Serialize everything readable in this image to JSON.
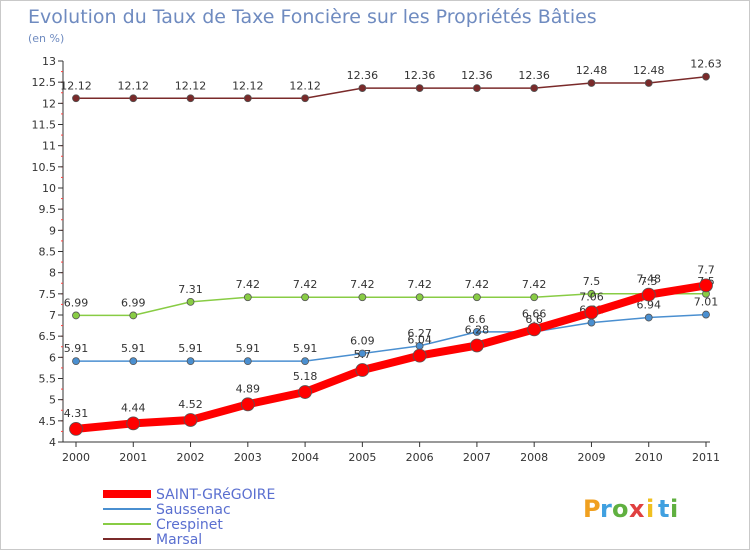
{
  "chart_data": {
    "type": "line",
    "title": "Evolution du Taux de Taxe Foncière sur les Propriétés Bâties",
    "subtitle": "(en %)",
    "xlabel": "",
    "ylabel": "",
    "categories": [
      "2000",
      "2001",
      "2002",
      "2003",
      "2004",
      "2005",
      "2006",
      "2007",
      "2008",
      "2009",
      "2010",
      "2011"
    ],
    "ylim": [
      4,
      13
    ],
    "yticks": [
      "4",
      "4.5",
      "5",
      "5.5",
      "6",
      "6.5",
      "7",
      "7.5",
      "8",
      "8.5",
      "9",
      "9.5",
      "10",
      "10.5",
      "11",
      "11.5",
      "12",
      "12.5",
      "13"
    ],
    "grid": false,
    "legend_position": "bottom-left",
    "series": [
      {
        "name": "SAINT-GRéGOIRE",
        "color": "#ff0000",
        "width": 8,
        "marker": 6.5,
        "values": [
          4.31,
          4.44,
          4.52,
          4.89,
          5.18,
          5.7,
          6.04,
          6.28,
          6.66,
          7.06,
          7.48,
          7.7
        ],
        "labels": [
          "4.31",
          "4.44",
          "4.52",
          "4.89",
          "5.18",
          "5.7",
          "6.04",
          "6.28",
          "6.66",
          "7.06",
          "7.48",
          "7.7"
        ]
      },
      {
        "name": "Saussenac",
        "color": "#4a8fd0",
        "width": 1.5,
        "marker": 3.5,
        "values": [
          5.91,
          5.91,
          5.91,
          5.91,
          5.91,
          6.09,
          6.27,
          6.6,
          6.6,
          6.82,
          6.94,
          7.01
        ],
        "labels": [
          "5.91",
          "5.91",
          "5.91",
          "5.91",
          "5.91",
          "6.09",
          "6.27",
          "6.6",
          "6.6",
          "6.82",
          "6.94",
          "7.01"
        ]
      },
      {
        "name": "Crespinet",
        "color": "#88cc44",
        "width": 1.5,
        "marker": 3.5,
        "values": [
          6.99,
          6.99,
          7.31,
          7.42,
          7.42,
          7.42,
          7.42,
          7.42,
          7.42,
          7.5,
          7.5,
          7.5
        ],
        "labels": [
          "6.99",
          "6.99",
          "7.31",
          "7.42",
          "7.42",
          "7.42",
          "7.42",
          "7.42",
          "7.42",
          "7.5",
          "7.5",
          "7.5"
        ]
      },
      {
        "name": "Marsal",
        "color": "#7a2a2a",
        "width": 1.5,
        "marker": 3.5,
        "values": [
          12.12,
          12.12,
          12.12,
          12.12,
          12.12,
          12.36,
          12.36,
          12.36,
          12.36,
          12.48,
          12.48,
          12.63
        ],
        "labels": [
          "12.12",
          "12.12",
          "12.12",
          "12.12",
          "12.12",
          "12.36",
          "12.36",
          "12.36",
          "12.36",
          "12.48",
          "12.48",
          "12.63"
        ]
      }
    ]
  },
  "logo": {
    "letters": [
      "P",
      "r",
      "o",
      "x",
      "i",
      "t",
      "i"
    ],
    "colors": [
      "#f0a020",
      "#40a0e0",
      "#60b040",
      "#e04040",
      "#f0c020",
      "#40a0e0",
      "#60b040"
    ]
  }
}
